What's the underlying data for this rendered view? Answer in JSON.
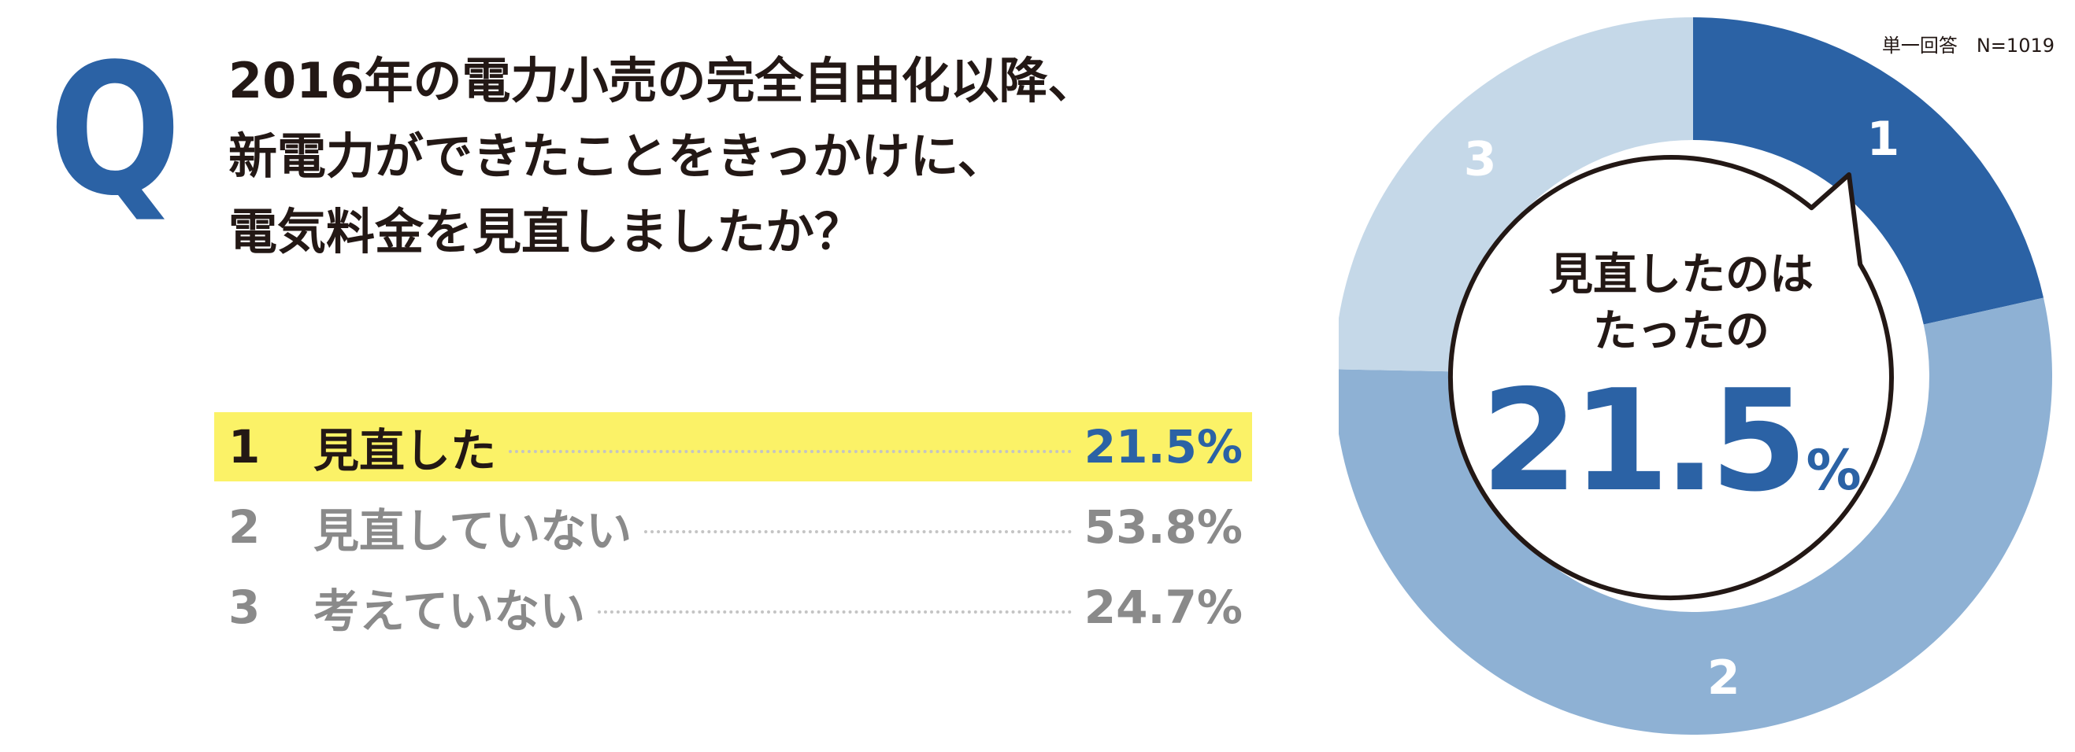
{
  "question": {
    "mark": "Q",
    "lines": [
      "2016年の電力小売の完全自由化以降、",
      "新電力ができたことをきっかけに、",
      "電気料金を見直しましたか？"
    ]
  },
  "answers": [
    {
      "num": "1",
      "label": "見直した",
      "pct": "21.5%"
    },
    {
      "num": "2",
      "label": "見直していない",
      "pct": "53.8%"
    },
    {
      "num": "3",
      "label": "考えていない",
      "pct": "24.7%"
    }
  ],
  "note": "単一回答　N=1019",
  "callout": {
    "line1": "見直したのは",
    "line2": "たったの",
    "value": "21.5",
    "unit": "%"
  },
  "chart_data": {
    "type": "pie",
    "donut": true,
    "categories": [
      "1",
      "2",
      "3"
    ],
    "values": [
      21.5,
      53.8,
      24.7
    ],
    "colors": [
      "#2b62a5",
      "#8eb1d4",
      "#c5d8e8"
    ],
    "start_angle": "12 o'clock",
    "direction": "clockwise",
    "highlight": "1"
  }
}
